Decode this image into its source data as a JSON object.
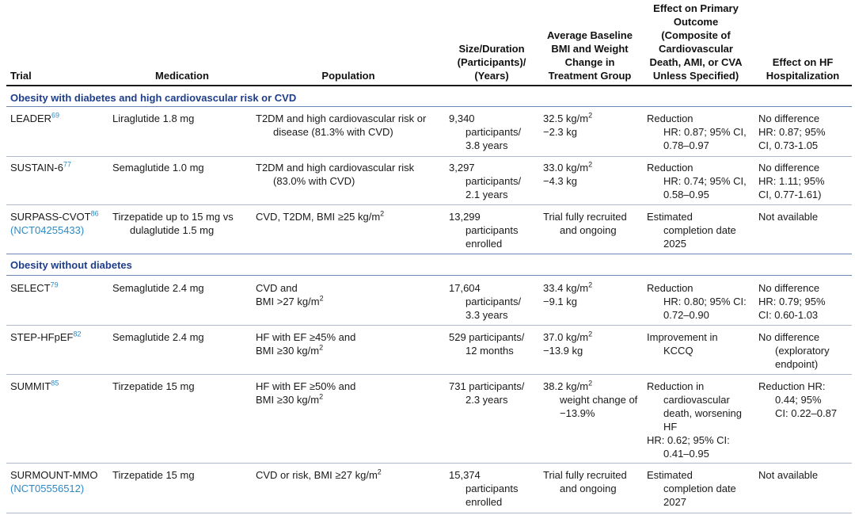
{
  "headers": {
    "trial": "Trial",
    "medication": "Medication",
    "population": "Population",
    "size": [
      "Size/Duration",
      "(Participants)/",
      "(Years)"
    ],
    "bmi": [
      "Average Baseline",
      "BMI and Weight",
      "Change in",
      "Treatment Group"
    ],
    "primary": [
      "Effect on Primary",
      "Outcome",
      "(Composite of",
      "Cardiovascular",
      "Death, AMI, or CVA",
      "Unless Specified)"
    ],
    "hf": [
      "Effect on HF",
      "Hospitalization"
    ]
  },
  "sections": [
    "Obesity with diabetes and high cardiovascular risk or CVD",
    "Obesity without diabetes"
  ],
  "rows": [
    {
      "trial": "LEADER",
      "ref": "69",
      "medication": [
        "Liraglutide 1.8 mg"
      ],
      "population": [
        "T2DM and high cardiovascular risk or",
        "disease (81.3% with CVD)"
      ],
      "size": [
        "9,340",
        "participants/",
        "3.8 years"
      ],
      "bmi": [
        "32.5 kg/m",
        "−2.3 kg"
      ],
      "primary": [
        "Reduction",
        "HR: 0.87; 95% CI,",
        "0.78–0.97"
      ],
      "hf": [
        "No difference",
        "HR: 0.87; 95%",
        "CI, 0.73-1.05"
      ]
    },
    {
      "trial": "SUSTAIN-6",
      "ref": "77",
      "medication": [
        "Semaglutide 1.0 mg"
      ],
      "population": [
        "T2DM and high cardiovascular risk",
        "(83.0% with CVD)"
      ],
      "size": [
        "3,297",
        "participants/",
        "2.1 years"
      ],
      "bmi": [
        "33.0 kg/m",
        "−4.3 kg"
      ],
      "primary": [
        "Reduction",
        "HR: 0.74; 95% CI,",
        "0.58–0.95"
      ],
      "hf": [
        "No difference",
        "HR: 1.11; 95%",
        "CI, 0.77-1.61)"
      ]
    },
    {
      "trial": "SURPASS-CVOT",
      "ref": "86",
      "trial_link": "(NCT04255433)",
      "medication": [
        "Tirzepatide up to 15 mg vs",
        "dulaglutide 1.5 mg"
      ],
      "population": [
        "CVD, T2DM, BMI ≥25 kg/m"
      ],
      "size": [
        "13,299",
        "participants",
        "enrolled"
      ],
      "bmi": [
        "Trial fully recruited",
        "and ongoing"
      ],
      "primary": [
        "Estimated",
        "completion date",
        "2025"
      ],
      "hf": [
        "Not available"
      ]
    },
    {
      "trial": "SELECT",
      "ref": "79",
      "medication": [
        "Semaglutide 2.4 mg"
      ],
      "population": [
        "CVD and",
        "BMI >27 kg/m"
      ],
      "size": [
        "17,604",
        "participants/",
        "3.3 years"
      ],
      "bmi": [
        "33.4 kg/m",
        "−9.1 kg"
      ],
      "primary": [
        "Reduction",
        "HR: 0.80; 95% CI:",
        "0.72–0.90"
      ],
      "hf": [
        "No difference",
        "HR: 0.79; 95%",
        "CI: 0.60-1.03"
      ]
    },
    {
      "trial": "STEP-HFpEF",
      "ref": "82",
      "medication": [
        "Semaglutide 2.4 mg"
      ],
      "population": [
        "HF with EF ≥45% and",
        "BMI ≥30 kg/m"
      ],
      "size": [
        "529 participants/",
        "12 months"
      ],
      "bmi": [
        "37.0 kg/m",
        "−13.9 kg"
      ],
      "primary": [
        "Improvement in",
        "KCCQ"
      ],
      "hf": [
        "No difference",
        "(exploratory",
        "endpoint)"
      ]
    },
    {
      "trial": "SUMMIT",
      "ref": "85",
      "medication": [
        "Tirzepatide 15 mg"
      ],
      "population": [
        "HF with EF ≥50% and",
        "BMI ≥30 kg/m"
      ],
      "size": [
        "731 participants/",
        "2.3 years"
      ],
      "bmi": [
        "38.2 kg/m",
        "weight change of",
        "−13.9%"
      ],
      "primary": [
        "Reduction in",
        "cardiovascular",
        "death, worsening",
        "HF",
        "HR: 0.62; 95% CI:",
        "0.41–0.95"
      ],
      "hf": [
        "Reduction HR:",
        "0.44; 95%",
        "CI: 0.22–0.87"
      ]
    },
    {
      "trial": "SURMOUNT-MMO",
      "ref": "",
      "trial_link": "(NCT05556512)",
      "medication": [
        "Tirzepatide 15 mg"
      ],
      "population": [
        "CVD or risk, BMI ≥27 kg/m"
      ],
      "size": [
        "15,374",
        "participants",
        "enrolled"
      ],
      "bmi": [
        "Trial fully recruited",
        "and ongoing"
      ],
      "primary": [
        "Estimated",
        "completion date",
        "2027"
      ],
      "hf": [
        "Not available"
      ]
    }
  ],
  "superscript_two": "2"
}
